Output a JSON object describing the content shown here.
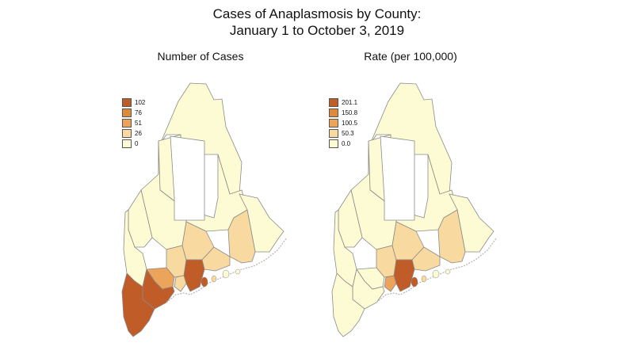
{
  "title_line1": "Cases of Anaplasmosis by County:",
  "title_line2": "January 1 to October 3, 2019",
  "colors": {
    "c0": "#fdfbd3",
    "c1": "#f8d9a0",
    "c2": "#eca35a",
    "c3": "#de8a3c",
    "c4": "#c05c28",
    "border": "#8a8a8a"
  },
  "maps": [
    {
      "subtitle": "Number of Cases",
      "legend": [
        "102",
        "76",
        "51",
        "26",
        "0"
      ],
      "legend_colors": [
        "#c05c28",
        "#de8a3c",
        "#eca35a",
        "#f8d9a0",
        "#fdfbd3"
      ],
      "county_colors": {
        "aroostook": "#fdfbd3",
        "piscataquis": "#fdfbd3",
        "penobscot": "#fdfbd3",
        "washington": "#fdfbd3",
        "hancock": "#f8d9a0",
        "somerset": "#fdfbd3",
        "franklin": "#fdfbd3",
        "oxford": "#fdfbd3",
        "kennebec": "#f8d9a0",
        "waldo": "#f8d9a0",
        "knox": "#f8d9a0",
        "lincoln": "#c05c28",
        "sagadahoc": "#f8d9a0",
        "androscoggin": "#eca35a",
        "cumberland": "#c05c28",
        "york": "#c05c28"
      }
    },
    {
      "subtitle": "Rate (per 100,000)",
      "legend": [
        "201.1",
        "150.8",
        "100.5",
        "50.3",
        "0.0"
      ],
      "legend_colors": [
        "#c05c28",
        "#de8a3c",
        "#eca35a",
        "#f8d9a0",
        "#fdfbd3"
      ],
      "county_colors": {
        "aroostook": "#fdfbd3",
        "piscataquis": "#fdfbd3",
        "penobscot": "#fdfbd3",
        "washington": "#fdfbd3",
        "hancock": "#f8d9a0",
        "somerset": "#fdfbd3",
        "franklin": "#fdfbd3",
        "oxford": "#fdfbd3",
        "kennebec": "#f8d9a0",
        "waldo": "#f8d9a0",
        "knox": "#f8d9a0",
        "lincoln": "#c05c28",
        "sagadahoc": "#eca35a",
        "androscoggin": "#fdfbd3",
        "cumberland": "#fdfbd3",
        "york": "#fdfbd3"
      }
    }
  ]
}
